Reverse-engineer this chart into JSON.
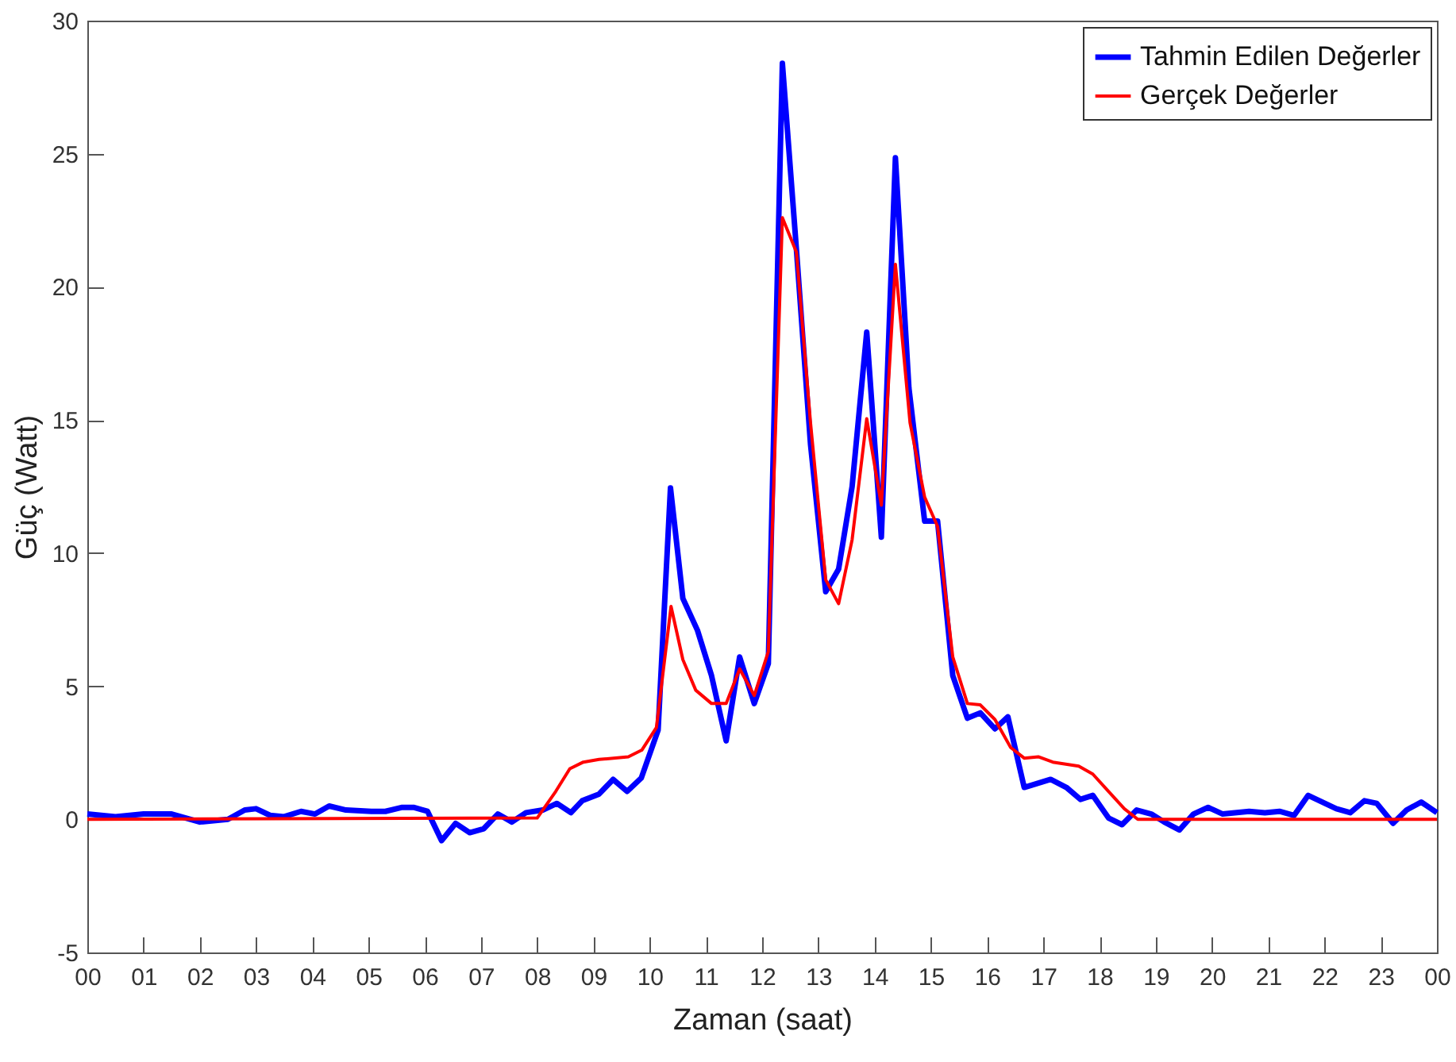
{
  "chart_data": {
    "type": "line",
    "xlabel": "Zaman (saat)",
    "ylabel": "Güç (Watt)",
    "xlim": [
      0,
      24
    ],
    "ylim": [
      -5,
      30
    ],
    "xticks": [
      {
        "value": 0,
        "label": "00"
      },
      {
        "value": 1,
        "label": "01"
      },
      {
        "value": 2,
        "label": "02"
      },
      {
        "value": 3,
        "label": "03"
      },
      {
        "value": 4,
        "label": "04"
      },
      {
        "value": 5,
        "label": "05"
      },
      {
        "value": 6,
        "label": "06"
      },
      {
        "value": 7,
        "label": "07"
      },
      {
        "value": 8,
        "label": "08"
      },
      {
        "value": 9,
        "label": "09"
      },
      {
        "value": 10,
        "label": "10"
      },
      {
        "value": 11,
        "label": "11"
      },
      {
        "value": 12,
        "label": "12"
      },
      {
        "value": 13,
        "label": "13"
      },
      {
        "value": 14,
        "label": "14"
      },
      {
        "value": 15,
        "label": "15"
      },
      {
        "value": 16,
        "label": "16"
      },
      {
        "value": 17,
        "label": "17"
      },
      {
        "value": 18,
        "label": "18"
      },
      {
        "value": 19,
        "label": "19"
      },
      {
        "value": 20,
        "label": "20"
      },
      {
        "value": 21,
        "label": "21"
      },
      {
        "value": 22,
        "label": "22"
      },
      {
        "value": 23,
        "label": "23"
      },
      {
        "value": 24,
        "label": "00"
      }
    ],
    "yticks": [
      -5,
      0,
      5,
      10,
      15,
      20,
      25,
      30
    ],
    "grid": false,
    "legend": "top right",
    "line_style": "solid",
    "series": [
      {
        "name": "Tahmin Edilen Değerler",
        "color": "#0000ff",
        "x": [
          0,
          0.5,
          1.0,
          1.5,
          2.0,
          2.5,
          2.8,
          3.0,
          3.25,
          3.5,
          3.8,
          4.05,
          4.3,
          4.6,
          5.05,
          5.3,
          5.6,
          5.8,
          6.05,
          6.3,
          6.55,
          6.8,
          7.05,
          7.3,
          7.55,
          7.8,
          8.1,
          8.35,
          8.6,
          8.8,
          9.1,
          9.35,
          9.6,
          9.85,
          10.15,
          10.37,
          10.59,
          10.85,
          11.1,
          11.36,
          11.6,
          11.86,
          12.11,
          12.36,
          12.61,
          12.86,
          13.13,
          13.36,
          13.6,
          13.86,
          14.12,
          14.37,
          14.61,
          14.89,
          15.12,
          15.39,
          15.65,
          15.88,
          16.14,
          16.37,
          16.66,
          17.13,
          17.41,
          17.66,
          17.88,
          18.16,
          18.4,
          18.66,
          18.92,
          19.15,
          19.42,
          19.67,
          19.93,
          20.19,
          20.66,
          20.94,
          21.2,
          21.46,
          21.71,
          22.21,
          22.46,
          22.71,
          22.93,
          23.22,
          23.46,
          23.72,
          24
        ],
        "values": [
          0.2,
          0.1,
          0.2,
          0.2,
          -0.1,
          0,
          0.35,
          0.4,
          0.15,
          0.1,
          0.3,
          0.2,
          0.5,
          0.35,
          0.3,
          0.3,
          0.45,
          0.45,
          0.3,
          -0.8,
          -0.15,
          -0.5,
          -0.35,
          0.2,
          -0.1,
          0.25,
          0.35,
          0.6,
          0.25,
          0.7,
          0.95,
          1.5,
          1.05,
          1.55,
          3.35,
          12.45,
          8.3,
          7.1,
          5.4,
          2.95,
          6.1,
          4.35,
          5.85,
          28.4,
          21.4,
          14.1,
          8.55,
          9.4,
          12.5,
          18.3,
          10.6,
          24.85,
          16.2,
          11.2,
          11.2,
          5.4,
          3.8,
          4.0,
          3.4,
          3.85,
          1.2,
          1.5,
          1.2,
          0.75,
          0.9,
          0.05,
          -0.2,
          0.35,
          0.2,
          -0.1,
          -0.4,
          0.2,
          0.45,
          0.2,
          0.3,
          0.25,
          0.3,
          0.15,
          0.9,
          0.4,
          0.25,
          0.7,
          0.6,
          -0.15,
          0.35,
          0.65,
          0.25
        ]
      },
      {
        "name": "Gerçek Değerler",
        "color": "#ff0000",
        "x": [
          0,
          8.0,
          8.33,
          8.58,
          8.82,
          9.1,
          9.62,
          9.86,
          10.12,
          10.38,
          10.59,
          10.82,
          11.1,
          11.36,
          11.6,
          11.86,
          12.11,
          12.36,
          12.61,
          12.86,
          13.13,
          13.36,
          13.6,
          13.86,
          14.12,
          14.37,
          14.63,
          14.89,
          15.12,
          15.39,
          15.65,
          15.88,
          16.14,
          16.42,
          16.66,
          16.91,
          17.17,
          17.63,
          17.88,
          18.16,
          18.44,
          18.68,
          24
        ],
        "values": [
          0,
          0.05,
          1.05,
          1.9,
          2.15,
          2.25,
          2.35,
          2.6,
          3.45,
          8.0,
          6.0,
          4.85,
          4.35,
          4.35,
          5.65,
          4.65,
          6.3,
          22.6,
          21.3,
          14.9,
          9.0,
          8.1,
          10.5,
          15.05,
          11.8,
          20.85,
          14.9,
          12.1,
          11.0,
          6.1,
          4.35,
          4.3,
          3.75,
          2.7,
          2.3,
          2.35,
          2.15,
          2.0,
          1.7,
          1.05,
          0.4,
          0,
          0
        ]
      }
    ]
  }
}
